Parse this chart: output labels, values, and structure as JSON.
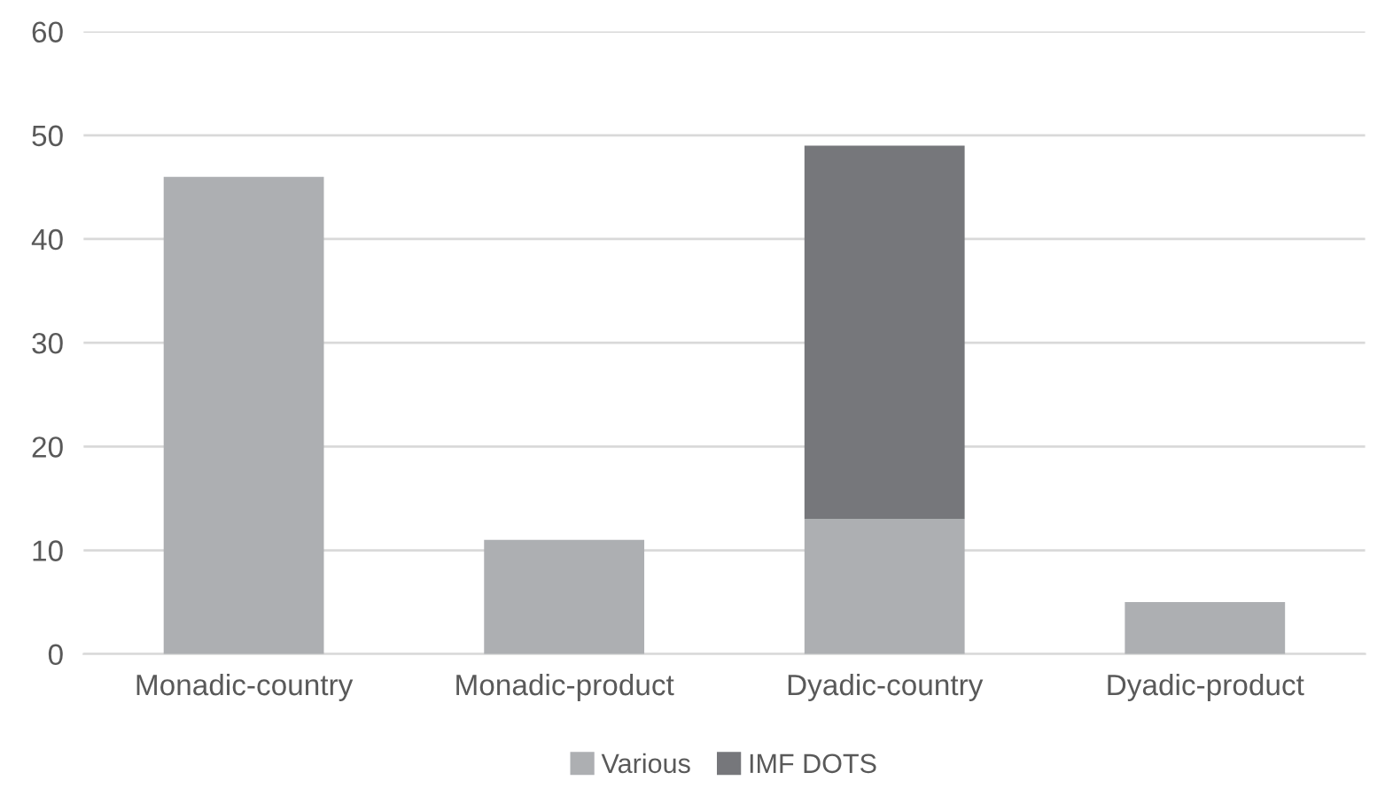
{
  "chart_data": {
    "type": "bar",
    "stacked": true,
    "categories": [
      "Monadic-country",
      "Monadic-product",
      "Dyadic-country",
      "Dyadic-product"
    ],
    "series": [
      {
        "name": "Various",
        "color": "#adafb2",
        "values": [
          46,
          11,
          13,
          5
        ]
      },
      {
        "name": "IMF DOTS",
        "color": "#76777b",
        "values": [
          0,
          0,
          36,
          0
        ]
      }
    ],
    "ylim": [
      0,
      60
    ],
    "yticks": [
      0,
      10,
      20,
      30,
      40,
      50,
      60
    ],
    "grid": "y",
    "legend": "bottom"
  }
}
